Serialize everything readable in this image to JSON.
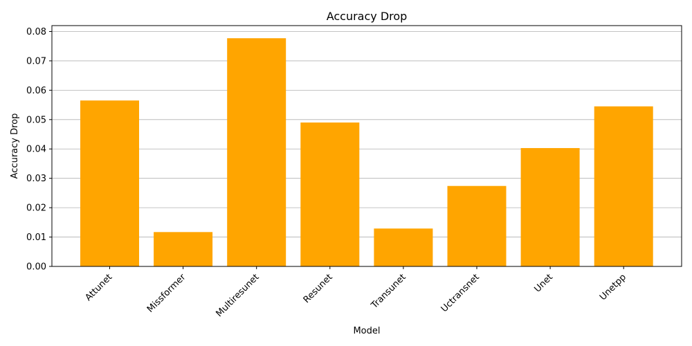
{
  "chart_data": {
    "type": "bar",
    "title": "Accuracy Drop",
    "xlabel": "Model",
    "ylabel": "Accuracy Drop",
    "categories": [
      "Attunet",
      "Missformer",
      "Multiresunet",
      "Resunet",
      "Transunet",
      "Uctransnet",
      "Unet",
      "Unetpp"
    ],
    "values": [
      0.0565,
      0.0117,
      0.0777,
      0.049,
      0.0129,
      0.0274,
      0.0403,
      0.0545
    ],
    "ylim": [
      0,
      0.082
    ],
    "yticks": [
      "0.00",
      "0.01",
      "0.02",
      "0.03",
      "0.04",
      "0.05",
      "0.06",
      "0.07",
      "0.08"
    ],
    "grid": "y-axis",
    "bar_color": "#ffa500",
    "tick_label_rotation": 45
  }
}
